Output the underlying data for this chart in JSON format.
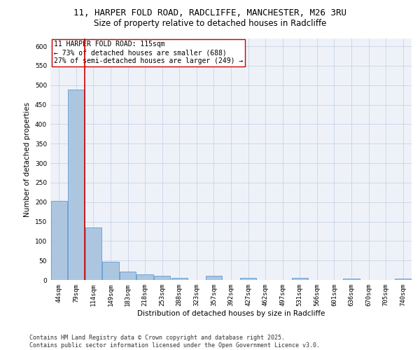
{
  "title_line1": "11, HARPER FOLD ROAD, RADCLIFFE, MANCHESTER, M26 3RU",
  "title_line2": "Size of property relative to detached houses in Radcliffe",
  "xlabel": "Distribution of detached houses by size in Radcliffe",
  "ylabel": "Number of detached properties",
  "categories": [
    "44sqm",
    "79sqm",
    "114sqm",
    "149sqm",
    "183sqm",
    "218sqm",
    "253sqm",
    "288sqm",
    "323sqm",
    "357sqm",
    "392sqm",
    "427sqm",
    "462sqm",
    "497sqm",
    "531sqm",
    "566sqm",
    "601sqm",
    "636sqm",
    "670sqm",
    "705sqm",
    "740sqm"
  ],
  "values": [
    203,
    488,
    135,
    46,
    22,
    15,
    11,
    6,
    0,
    10,
    0,
    5,
    0,
    0,
    6,
    0,
    0,
    4,
    0,
    0,
    4
  ],
  "bar_color": "#adc6e0",
  "bar_edge_color": "#5b9bd5",
  "vline_color": "#cc0000",
  "annotation_text": "11 HARPER FOLD ROAD: 115sqm\n← 73% of detached houses are smaller (688)\n27% of semi-detached houses are larger (249) →",
  "annotation_box_color": "#ffffff",
  "annotation_box_edge": "#cc0000",
  "ylim": [
    0,
    620
  ],
  "yticks": [
    0,
    50,
    100,
    150,
    200,
    250,
    300,
    350,
    400,
    450,
    500,
    550,
    600
  ],
  "grid_color": "#c8d4e8",
  "background_color": "#eef2f8",
  "footer_text": "Contains HM Land Registry data © Crown copyright and database right 2025.\nContains public sector information licensed under the Open Government Licence v3.0.",
  "title_fontsize": 9,
  "subtitle_fontsize": 8.5,
  "axis_label_fontsize": 7.5,
  "tick_fontsize": 6.5,
  "annotation_fontsize": 7,
  "footer_fontsize": 6
}
